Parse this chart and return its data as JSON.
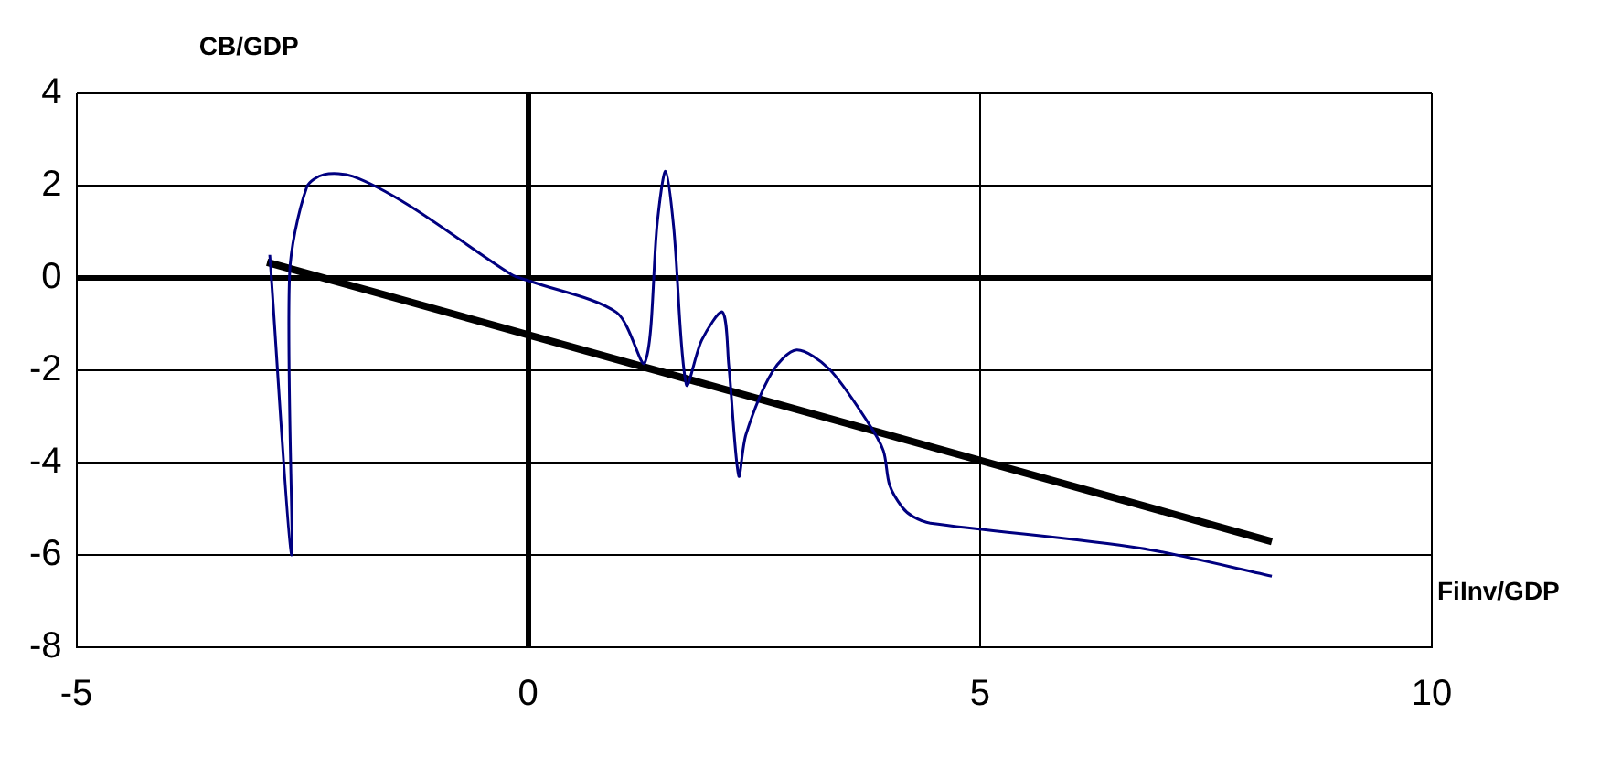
{
  "chart_data": {
    "type": "line",
    "xlabel": "FiInv/GDP",
    "ylabel": "CB/GDP",
    "xlim": [
      -5,
      10
    ],
    "xticks": [
      -5,
      0,
      5,
      10
    ],
    "ylim": [
      -8,
      4
    ],
    "yticks": [
      -8,
      -6,
      -4,
      -2,
      0,
      2,
      4
    ],
    "grid": true,
    "legend": false,
    "marker": "none",
    "line_style": "solid",
    "series": [
      {
        "color": "#000080",
        "x": [
          -2.86,
          -2.62,
          -2.64,
          -2.45,
          -2.26,
          -1.94,
          -1.31,
          -0.19,
          0.02,
          0.98,
          1.29,
          1.43,
          1.52,
          1.61,
          1.75,
          1.92,
          2.15,
          2.22,
          2.33,
          2.41,
          2.7,
          2.97,
          3.33,
          3.76,
          3.93,
          4.0,
          4.14,
          4.26,
          4.45,
          6.77,
          8.23
        ],
        "values": [
          0.5,
          -6.0,
          0.1,
          1.97,
          2.24,
          2.2,
          1.56,
          0.08,
          -0.07,
          -0.75,
          -1.84,
          1.22,
          2.31,
          1.1,
          -2.31,
          -1.35,
          -0.74,
          -1.9,
          -4.29,
          -3.39,
          -2.04,
          -1.56,
          -1.97,
          -3.13,
          -3.74,
          -4.49,
          -4.97,
          -5.17,
          -5.31,
          -5.85,
          -6.46
        ]
      },
      {
        "type": "line",
        "color": "#000000",
        "x": [
          -2.89,
          8.23
        ],
        "values": [
          0.34,
          -5.71
        ]
      }
    ]
  }
}
